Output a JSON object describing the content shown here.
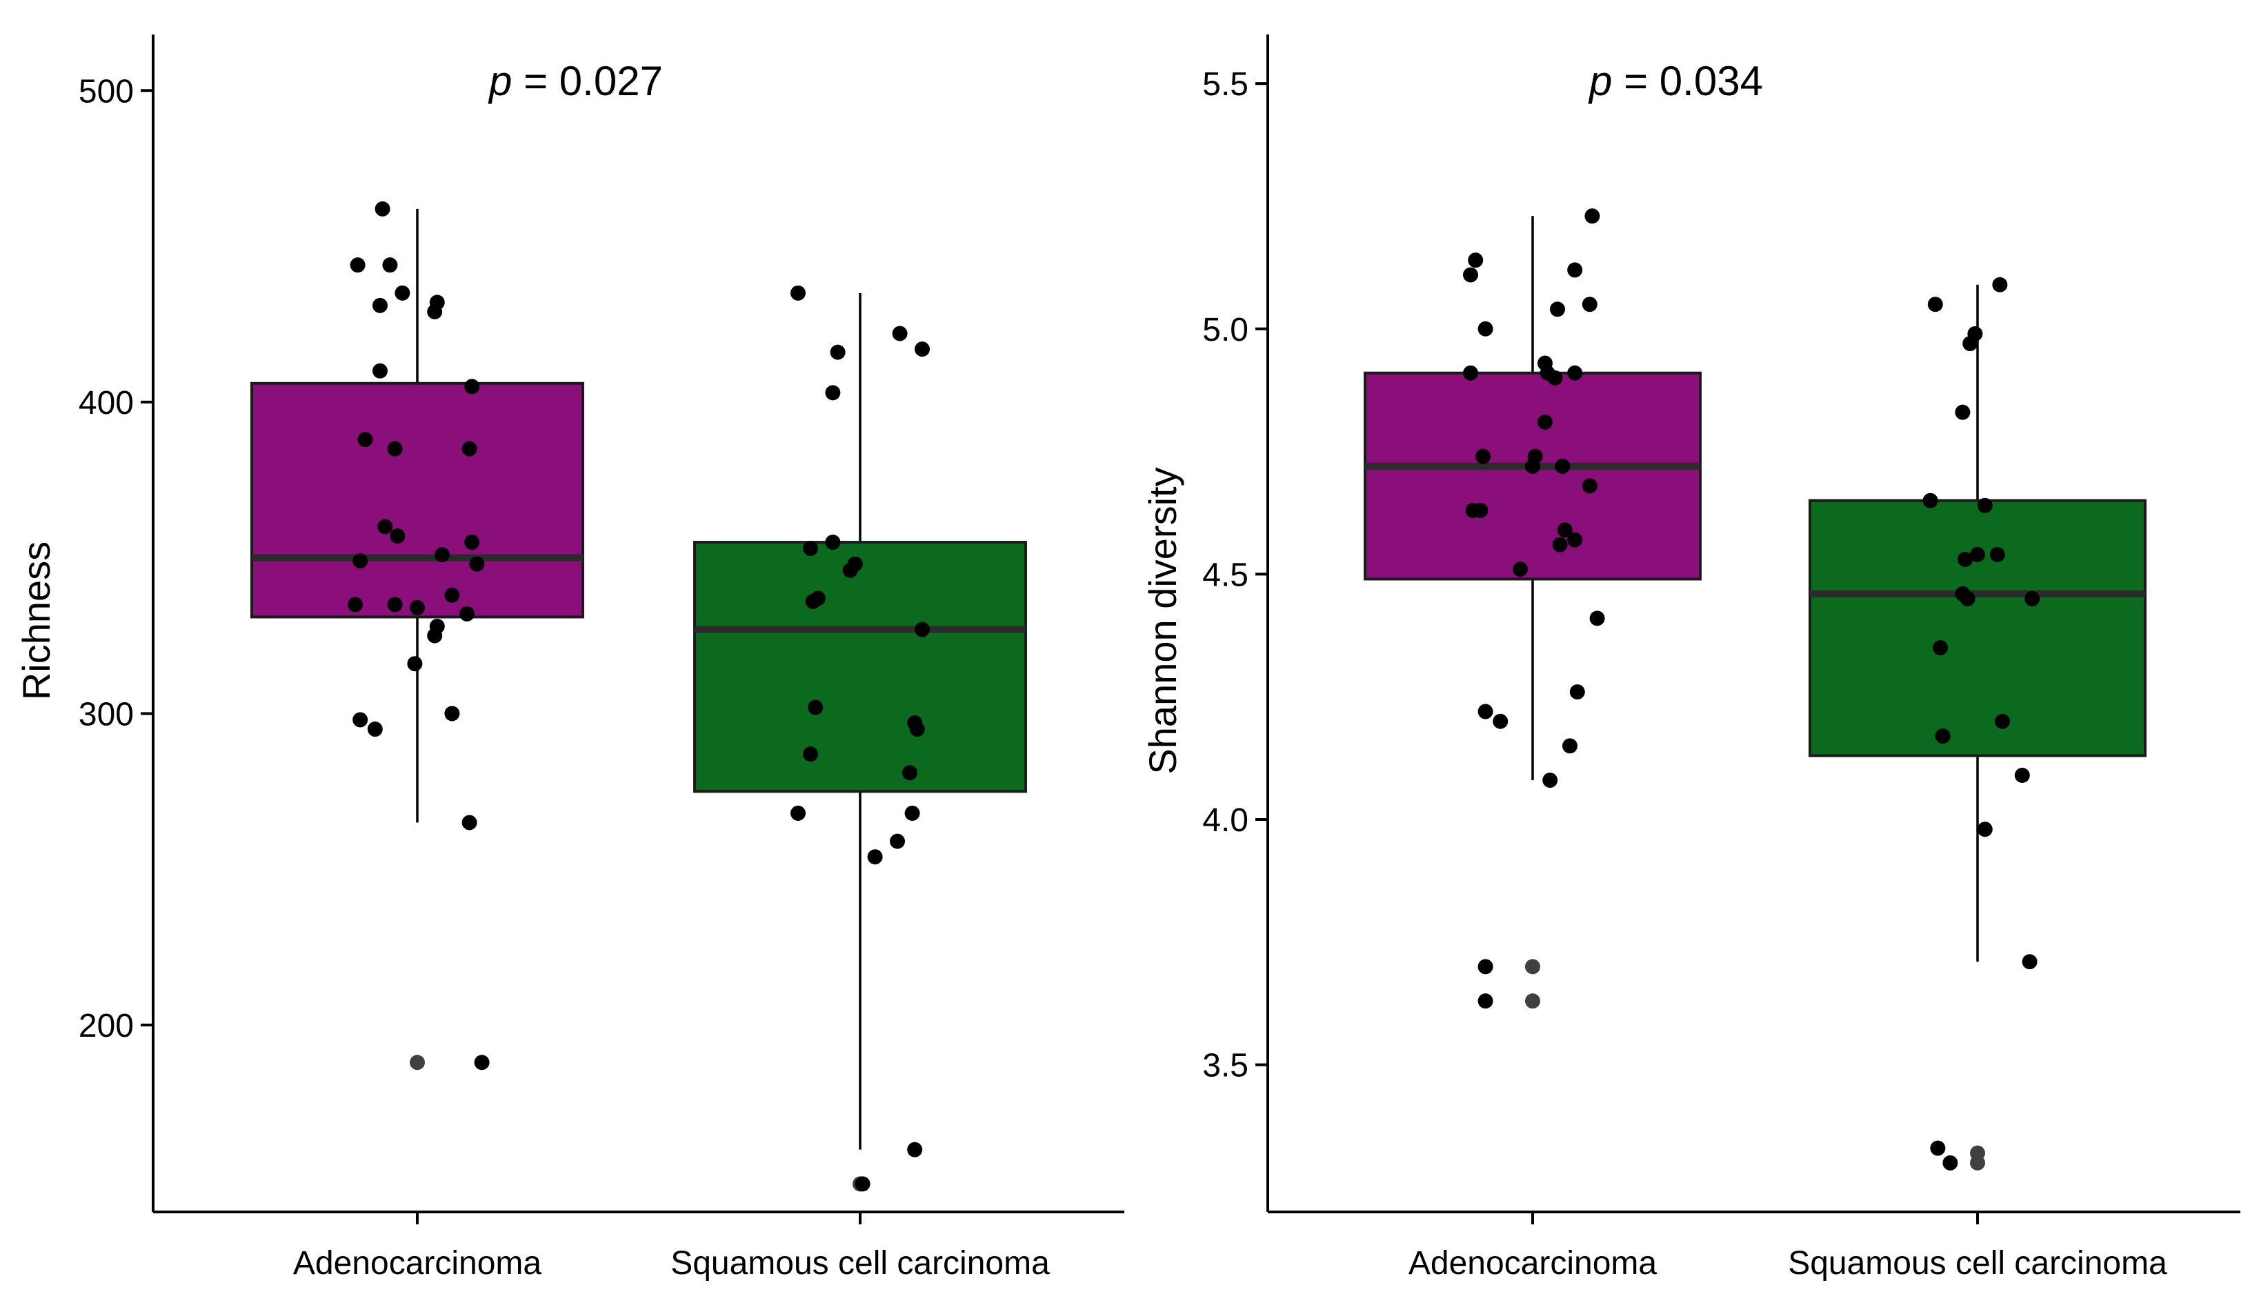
{
  "chart_data": [
    {
      "type": "box",
      "title": "p = 0.027",
      "p_label": "p",
      "p_value_text": "= 0.027",
      "xlabel": "",
      "ylabel": "Richness",
      "ylim": [
        140,
        518
      ],
      "yticks": [
        200,
        300,
        400,
        500
      ],
      "ytick_labels": [
        "200",
        "300",
        "400",
        "500"
      ],
      "categories": [
        "Adenocarcinoma",
        "Squamous cell carcinoma"
      ],
      "groups": [
        {
          "name": "Adenocarcinoma",
          "color": "#8b0f7b",
          "box": {
            "whisker_low": 265,
            "q1": 331,
            "median": 350,
            "q3": 406,
            "whisker_high": 462
          },
          "points": [
            {
              "y": 462,
              "jitter": -0.14
            },
            {
              "y": 444,
              "jitter": -0.24
            },
            {
              "y": 444,
              "jitter": -0.11
            },
            {
              "y": 435,
              "jitter": -0.06
            },
            {
              "y": 431,
              "jitter": -0.15
            },
            {
              "y": 432,
              "jitter": 0.08
            },
            {
              "y": 429,
              "jitter": 0.07
            },
            {
              "y": 410,
              "jitter": -0.15
            },
            {
              "y": 405,
              "jitter": 0.22
            },
            {
              "y": 388,
              "jitter": -0.21
            },
            {
              "y": 385,
              "jitter": -0.09
            },
            {
              "y": 385,
              "jitter": 0.21
            },
            {
              "y": 360,
              "jitter": -0.13
            },
            {
              "y": 357,
              "jitter": -0.08
            },
            {
              "y": 355,
              "jitter": 0.22
            },
            {
              "y": 351,
              "jitter": 0.1
            },
            {
              "y": 349,
              "jitter": -0.23
            },
            {
              "y": 348,
              "jitter": 0.24
            },
            {
              "y": 338,
              "jitter": 0.14
            },
            {
              "y": 335,
              "jitter": -0.25
            },
            {
              "y": 335,
              "jitter": -0.09
            },
            {
              "y": 334,
              "jitter": 0.0
            },
            {
              "y": 332,
              "jitter": 0.2
            },
            {
              "y": 328,
              "jitter": 0.08
            },
            {
              "y": 325,
              "jitter": 0.07
            },
            {
              "y": 316,
              "jitter": -0.01
            },
            {
              "y": 300,
              "jitter": 0.14
            },
            {
              "y": 298,
              "jitter": -0.23
            },
            {
              "y": 295,
              "jitter": -0.17
            },
            {
              "y": 265,
              "jitter": 0.21
            },
            {
              "y": 188,
              "jitter": 0.0,
              "outlier": true
            },
            {
              "y": 188,
              "jitter": 0.26
            }
          ]
        },
        {
          "name": "Squamous cell carcinoma",
          "color": "#0b6a1d",
          "box": {
            "whisker_low": 160,
            "q1": 275,
            "median": 327,
            "q3": 355,
            "whisker_high": 435
          },
          "points": [
            {
              "y": 435,
              "jitter": -0.25
            },
            {
              "y": 422,
              "jitter": 0.16
            },
            {
              "y": 417,
              "jitter": 0.25
            },
            {
              "y": 416,
              "jitter": -0.09
            },
            {
              "y": 403,
              "jitter": -0.11
            },
            {
              "y": 355,
              "jitter": -0.11
            },
            {
              "y": 353,
              "jitter": -0.2
            },
            {
              "y": 348,
              "jitter": -0.02
            },
            {
              "y": 346,
              "jitter": -0.04
            },
            {
              "y": 337,
              "jitter": -0.17
            },
            {
              "y": 336,
              "jitter": -0.19
            },
            {
              "y": 327,
              "jitter": 0.25
            },
            {
              "y": 302,
              "jitter": -0.18
            },
            {
              "y": 297,
              "jitter": 0.22
            },
            {
              "y": 295,
              "jitter": 0.23
            },
            {
              "y": 287,
              "jitter": -0.2
            },
            {
              "y": 281,
              "jitter": 0.2
            },
            {
              "y": 268,
              "jitter": -0.25
            },
            {
              "y": 268,
              "jitter": 0.21
            },
            {
              "y": 259,
              "jitter": 0.15
            },
            {
              "y": 254,
              "jitter": 0.06
            },
            {
              "y": 160,
              "jitter": 0.22
            },
            {
              "y": 149,
              "jitter": 0.0,
              "outlier": true
            },
            {
              "y": 149,
              "jitter": 0.01
            }
          ]
        }
      ]
    },
    {
      "type": "box",
      "title": "p = 0.034",
      "p_label": "p",
      "p_value_text": "= 0.034",
      "xlabel": "",
      "ylabel": "Shannon diversity",
      "ylim": [
        3.2,
        5.6
      ],
      "yticks": [
        3.5,
        4.0,
        4.5,
        5.0,
        5.5
      ],
      "ytick_labels": [
        "3.5",
        "4.0",
        "4.5",
        "5.0",
        "5.5"
      ],
      "categories": [
        "Adenocarcinoma",
        "Squamous cell carcinoma"
      ],
      "groups": [
        {
          "name": "Adenocarcinoma",
          "color": "#8b0f7b",
          "box": {
            "whisker_low": 4.08,
            "q1": 4.49,
            "median": 4.72,
            "q3": 4.91,
            "whisker_high": 5.23
          },
          "points": [
            {
              "y": 5.23,
              "jitter": 0.24
            },
            {
              "y": 5.14,
              "jitter": -0.23
            },
            {
              "y": 5.12,
              "jitter": 0.17
            },
            {
              "y": 5.11,
              "jitter": -0.25
            },
            {
              "y": 5.05,
              "jitter": 0.23
            },
            {
              "y": 5.04,
              "jitter": 0.1
            },
            {
              "y": 5.0,
              "jitter": -0.19
            },
            {
              "y": 4.93,
              "jitter": 0.05
            },
            {
              "y": 4.91,
              "jitter": -0.25
            },
            {
              "y": 4.91,
              "jitter": 0.06
            },
            {
              "y": 4.91,
              "jitter": 0.17
            },
            {
              "y": 4.9,
              "jitter": 0.09
            },
            {
              "y": 4.81,
              "jitter": 0.05
            },
            {
              "y": 4.74,
              "jitter": -0.2
            },
            {
              "y": 4.74,
              "jitter": 0.01
            },
            {
              "y": 4.72,
              "jitter": 0.0
            },
            {
              "y": 4.72,
              "jitter": 0.12
            },
            {
              "y": 4.68,
              "jitter": 0.23
            },
            {
              "y": 4.63,
              "jitter": -0.21
            },
            {
              "y": 4.63,
              "jitter": -0.24
            },
            {
              "y": 4.59,
              "jitter": 0.13
            },
            {
              "y": 4.57,
              "jitter": 0.17
            },
            {
              "y": 4.56,
              "jitter": 0.11
            },
            {
              "y": 4.51,
              "jitter": -0.05
            },
            {
              "y": 4.41,
              "jitter": 0.26
            },
            {
              "y": 4.26,
              "jitter": 0.18
            },
            {
              "y": 4.22,
              "jitter": -0.19
            },
            {
              "y": 4.2,
              "jitter": -0.13
            },
            {
              "y": 4.15,
              "jitter": 0.15
            },
            {
              "y": 4.08,
              "jitter": 0.07
            },
            {
              "y": 3.7,
              "jitter": -0.19
            },
            {
              "y": 3.7,
              "jitter": 0.0,
              "outlier": true
            },
            {
              "y": 3.63,
              "jitter": -0.19
            },
            {
              "y": 3.63,
              "jitter": 0.0,
              "outlier": true
            }
          ]
        },
        {
          "name": "Squamous cell carcinoma",
          "color": "#0b6a1d",
          "box": {
            "whisker_low": 3.71,
            "q1": 4.13,
            "median": 4.46,
            "q3": 4.65,
            "whisker_high": 5.09
          },
          "points": [
            {
              "y": 5.09,
              "jitter": 0.09
            },
            {
              "y": 5.05,
              "jitter": -0.17
            },
            {
              "y": 4.99,
              "jitter": -0.01
            },
            {
              "y": 4.97,
              "jitter": -0.03
            },
            {
              "y": 4.83,
              "jitter": -0.06
            },
            {
              "y": 4.65,
              "jitter": -0.19
            },
            {
              "y": 4.64,
              "jitter": 0.03
            },
            {
              "y": 4.54,
              "jitter": 0.0
            },
            {
              "y": 4.54,
              "jitter": 0.08
            },
            {
              "y": 4.53,
              "jitter": -0.05
            },
            {
              "y": 4.46,
              "jitter": -0.06
            },
            {
              "y": 4.45,
              "jitter": -0.04
            },
            {
              "y": 4.45,
              "jitter": 0.22
            },
            {
              "y": 4.35,
              "jitter": -0.15
            },
            {
              "y": 4.2,
              "jitter": 0.1
            },
            {
              "y": 4.17,
              "jitter": -0.14
            },
            {
              "y": 4.09,
              "jitter": 0.18
            },
            {
              "y": 3.98,
              "jitter": 0.03
            },
            {
              "y": 3.71,
              "jitter": 0.21
            },
            {
              "y": 3.33,
              "jitter": -0.16
            },
            {
              "y": 3.32,
              "jitter": 0.0,
              "outlier": true
            },
            {
              "y": 3.3,
              "jitter": -0.11
            },
            {
              "y": 3.3,
              "jitter": 0.0,
              "outlier": true
            }
          ]
        }
      ]
    }
  ]
}
